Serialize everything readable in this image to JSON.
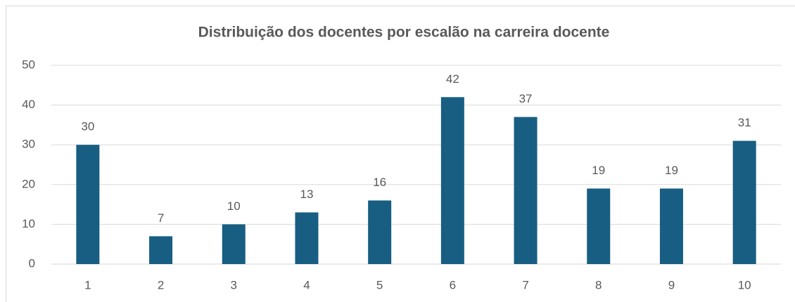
{
  "chart_data": {
    "type": "bar",
    "title": "Distribuição dos docentes por escalão na carreira docente",
    "categories": [
      "1",
      "2",
      "3",
      "4",
      "5",
      "6",
      "7",
      "8",
      "9",
      "10"
    ],
    "values": [
      30,
      7,
      10,
      13,
      16,
      42,
      37,
      19,
      19,
      31
    ],
    "color": "#175e82",
    "ylim": [
      0,
      50
    ],
    "yticks": [
      0,
      10,
      20,
      30,
      40,
      50
    ],
    "grid": true
  }
}
